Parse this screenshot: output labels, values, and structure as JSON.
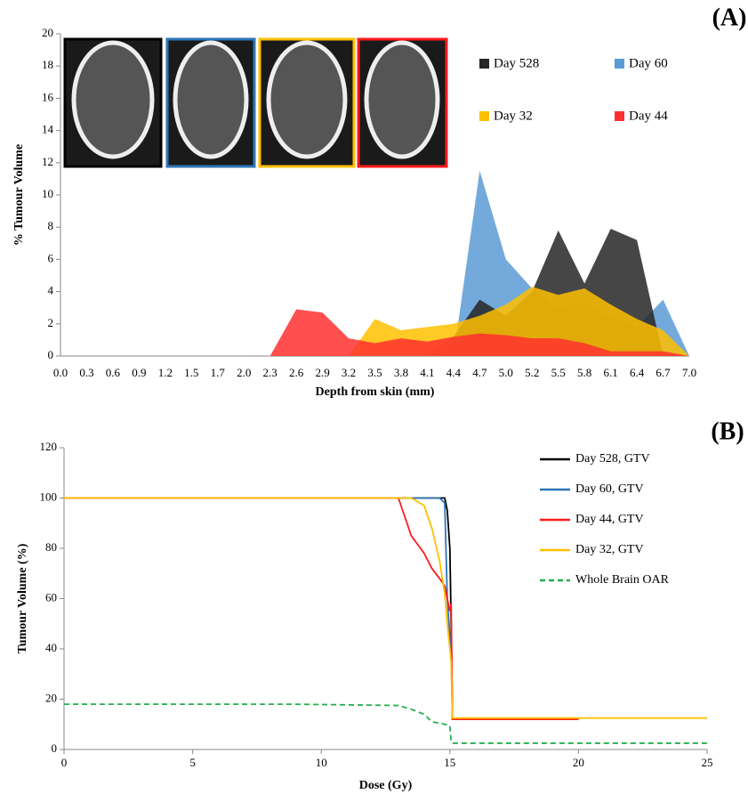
{
  "chart_data": [
    {
      "type": "area",
      "title": "(A)",
      "x_label": "Depth from skin (mm)",
      "y_label": "% Tumour Volume",
      "categories": [
        "0.0",
        "0.3",
        "0.6",
        "0.9",
        "1.2",
        "1.5",
        "1.7",
        "2.0",
        "2.3",
        "2.6",
        "2.9",
        "3.2",
        "3.5",
        "3.8",
        "4.1",
        "4.4",
        "4.7",
        "5.0",
        "5.2",
        "5.5",
        "5.8",
        "6.1",
        "6.4",
        "6.7",
        "7.0"
      ],
      "series": [
        {
          "name": "Day 60",
          "color": "#5b9bd5",
          "values": [
            0,
            0,
            0,
            0,
            0,
            0,
            0,
            0,
            0,
            0,
            0,
            0,
            0,
            0,
            0,
            0,
            11.5,
            6.0,
            4.2,
            3.0,
            3.3,
            2.4,
            1.8,
            3.5,
            0
          ]
        },
        {
          "name": "Day 528",
          "color": "#262626",
          "values": [
            0,
            0,
            0,
            0,
            0,
            0,
            0,
            0,
            0,
            0,
            0,
            0,
            0,
            0,
            0,
            1.2,
            3.5,
            2.5,
            4.0,
            7.8,
            4.5,
            7.9,
            7.2,
            0,
            0
          ]
        },
        {
          "name": "Day 32",
          "color": "#ffc000",
          "values": [
            0,
            0,
            0,
            0,
            0,
            0,
            0,
            0,
            0,
            0,
            0,
            0,
            2.3,
            1.6,
            1.8,
            2.0,
            2.5,
            3.2,
            4.3,
            3.8,
            4.2,
            3.2,
            2.3,
            1.6,
            0
          ]
        },
        {
          "name": "Day 44",
          "color": "#ff3030",
          "values": [
            0,
            0,
            0,
            0,
            0,
            0,
            0,
            0,
            0,
            2.9,
            2.7,
            1.1,
            0.8,
            1.1,
            0.9,
            1.2,
            1.4,
            1.3,
            1.1,
            1.1,
            0.8,
            0.3,
            0.3,
            0.3,
            0
          ]
        }
      ],
      "legend_order": [
        1,
        0,
        2,
        3
      ],
      "ylim": [
        0,
        20
      ],
      "yticks": [
        0,
        2,
        4,
        6,
        8,
        10,
        12,
        14,
        16,
        18,
        20
      ]
    },
    {
      "type": "line",
      "title": "(B)",
      "x_label": "Dose (Gy)",
      "y_label": "Tumour Volume (%)",
      "x": [
        0,
        9,
        13,
        13.5,
        14,
        14.3,
        14.6,
        14.8,
        14.9,
        15.0,
        15.05,
        15.1,
        15.15,
        15.2,
        20,
        25
      ],
      "series": [
        {
          "name": "Day 528, GTV",
          "color": "#000000",
          "style": "solid",
          "values": [
            100,
            100,
            100,
            100,
            100,
            100,
            100,
            100,
            95,
            80,
            50,
            12,
            12,
            12,
            12,
            null
          ]
        },
        {
          "name": "Day 60, GTV",
          "color": "#2e75b6",
          "style": "solid",
          "values": [
            100,
            100,
            100,
            100,
            100,
            100,
            100,
            98,
            60,
            45,
            38,
            12,
            12,
            12,
            12,
            null
          ]
        },
        {
          "name": "Day 44, GTV",
          "color": "#ff1a1a",
          "style": "solid",
          "values": [
            100,
            100,
            100,
            85,
            78,
            72,
            68,
            65,
            60,
            55,
            58,
            12,
            12,
            12,
            12,
            null
          ]
        },
        {
          "name": "Day 32, GTV",
          "color": "#ffc000",
          "style": "solid",
          "values": [
            100,
            100,
            100,
            100,
            97,
            88,
            75,
            62,
            50,
            40,
            35,
            12.5,
            12.5,
            12.5,
            12.5,
            12.5
          ]
        },
        {
          "name": "Whole Brain OAR",
          "color": "#22b04a",
          "style": "dashed",
          "values": [
            18,
            18,
            17.5,
            16,
            14,
            11,
            10.5,
            10,
            9.8,
            9.5,
            3,
            2.5,
            2.5,
            2.5,
            2.5,
            2.5
          ]
        }
      ],
      "xlim": [
        0,
        25
      ],
      "xticks": [
        0,
        5,
        10,
        15,
        20,
        25
      ],
      "ylim": [
        0,
        120
      ],
      "yticks": [
        0,
        20,
        40,
        60,
        80,
        100,
        120
      ]
    }
  ]
}
